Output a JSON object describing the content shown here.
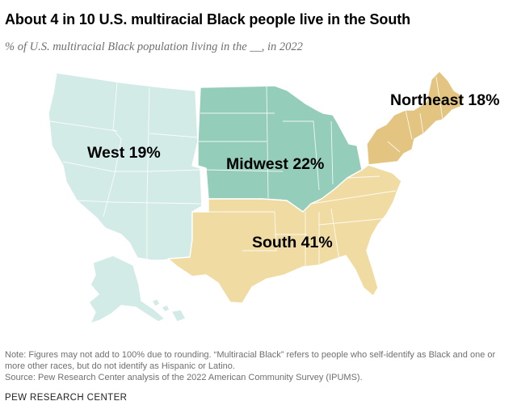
{
  "title": "About 4 in 10 U.S. multiracial Black people live in the South",
  "subtitle": "% of U.S. multiracial Black population living in the __, in 2022",
  "note": "Note: Figures may not add to 100% due to rounding. “Multiracial Black” refers to people who self-identify as Black and one or more other races, but do not identify as Hispanic or Latino.",
  "source": "Source: Pew Research Center analysis of the 2022 American Community Survey (IPUMS).",
  "brand": "PEW RESEARCH CENTER",
  "colors": {
    "west": "#d3ebe6",
    "midwest": "#94cdb9",
    "south": "#f0dca3",
    "northeast": "#e3c480"
  },
  "regions": [
    {
      "id": "west",
      "name": "West",
      "percent": 19,
      "label": "West 19%"
    },
    {
      "id": "midwest",
      "name": "Midwest",
      "percent": 22,
      "label": "Midwest 22%"
    },
    {
      "id": "south",
      "name": "South",
      "percent": 41,
      "label": "South 41%"
    },
    {
      "id": "northeast",
      "name": "Northeast",
      "percent": 18,
      "label": "Northeast 18%"
    }
  ]
}
